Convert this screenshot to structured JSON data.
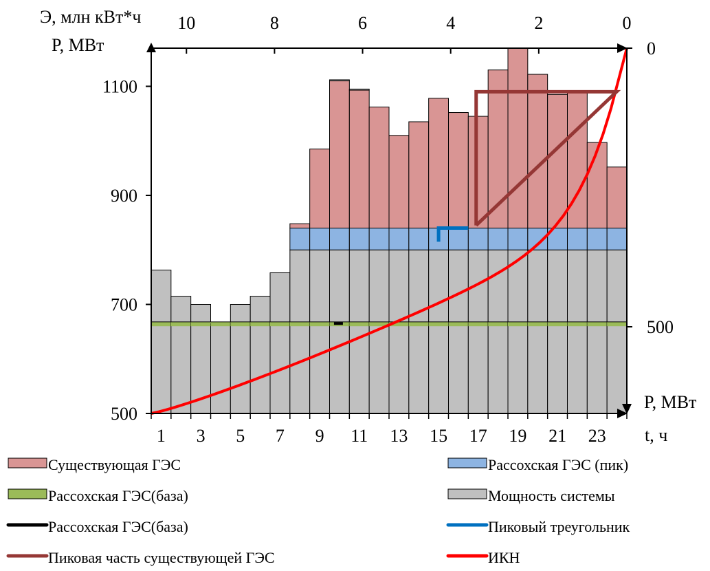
{
  "chart_data": {
    "type": "bar",
    "labels": {
      "top_axis_title": "Э, млн кВт*ч",
      "left_axis_title": "P, МВт",
      "right_axis_title": "P, МВт",
      "x_axis_title": "t, ч"
    },
    "x_ticks": [
      "1",
      "3",
      "5",
      "7",
      "9",
      "11",
      "13",
      "15",
      "17",
      "19",
      "21",
      "23"
    ],
    "y_ticks": [
      "500",
      "700",
      "900",
      "1100"
    ],
    "top_ticks": [
      "10",
      "8",
      "6",
      "4",
      "2",
      "0"
    ],
    "right_ticks": [
      "0",
      "500"
    ],
    "ylim": [
      500,
      1170
    ],
    "hours": [
      1,
      2,
      3,
      4,
      5,
      6,
      7,
      8,
      9,
      10,
      11,
      12,
      13,
      14,
      15,
      16,
      17,
      18,
      19,
      20,
      21,
      22,
      23,
      24
    ],
    "series": [
      {
        "name": "Мощность системы",
        "color": "#c0c0c0",
        "values": [
          763,
          715,
          700,
          665,
          700,
          715,
          758,
          800,
          800,
          800,
          800,
          800,
          800,
          800,
          800,
          800,
          800,
          800,
          800,
          800,
          800,
          800,
          800,
          800
        ]
      },
      {
        "name": "Рассохская ГЭС(база)",
        "color": "#9bbb59",
        "values": [
          660,
          660,
          660,
          660,
          660,
          660,
          660,
          660,
          660,
          660,
          660,
          660,
          660,
          660,
          660,
          660,
          660,
          660,
          660,
          660,
          660,
          660,
          660,
          660
        ]
      },
      {
        "name": "Рассохская ГЭС (пик)",
        "color": "#8db4e2",
        "values": [
          0,
          0,
          0,
          0,
          0,
          0,
          0,
          800,
          800,
          800,
          800,
          800,
          800,
          800,
          800,
          800,
          800,
          800,
          800,
          800,
          800,
          800,
          800,
          800
        ]
      },
      {
        "name": "Существующая ГЭС",
        "color": "#d99594",
        "values": [
          0,
          0,
          0,
          0,
          0,
          0,
          0,
          848,
          985,
          1110,
          1093,
          1062,
          1010,
          1035,
          1078,
          1052,
          1045,
          1130,
          1170,
          1122,
          1085,
          1088,
          997,
          952
        ]
      }
    ],
    "system_totals": [
      763,
      715,
      700,
      665,
      700,
      715,
      758,
      848,
      985,
      1112,
      1095,
      1062,
      1010,
      1035,
      1078,
      1052,
      1045,
      1130,
      1170,
      1122,
      1085,
      1088,
      997,
      952
    ],
    "band": {
      "base_top": 668,
      "peak_bottom": 800,
      "peak_top": 840
    },
    "lines": [
      {
        "name": "Рассохская ГЭС(база)",
        "color": "#000000"
      },
      {
        "name": "Пиковый треугольник",
        "color": "#0070c0"
      },
      {
        "name": "Пиковая часть существующей ГЭС",
        "color": "#953735"
      },
      {
        "name": "ИКН",
        "color": "#ff0000"
      }
    ],
    "legend": [
      {
        "name": "Существующая ГЭС",
        "kind": "box",
        "color": "#d99594"
      },
      {
        "name": "Рассохская ГЭС (пик)",
        "kind": "box",
        "color": "#8db4e2"
      },
      {
        "name": "Рассохская ГЭС(база)",
        "kind": "box",
        "color": "#9bbb59"
      },
      {
        "name": "Мощность системы",
        "kind": "box",
        "color": "#c0c0c0"
      },
      {
        "name": "Рассохская ГЭС(база)",
        "kind": "line",
        "color": "#000000"
      },
      {
        "name": "Пиковый треугольник",
        "kind": "line",
        "color": "#0070c0"
      },
      {
        "name": "Пиковая часть существующей ГЭС",
        "kind": "line",
        "color": "#953735"
      },
      {
        "name": "ИКН",
        "kind": "line",
        "color": "#ff0000"
      }
    ]
  }
}
